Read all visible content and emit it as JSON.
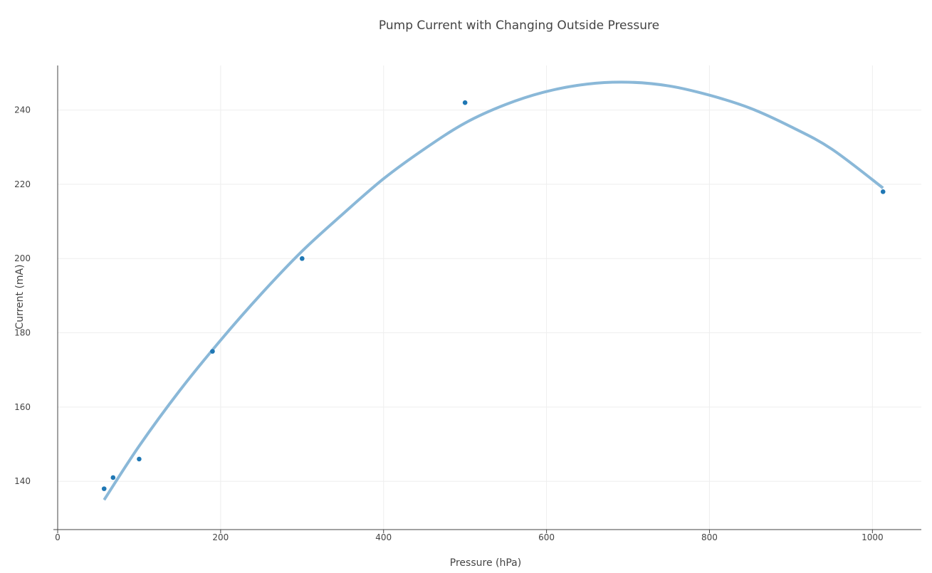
{
  "chart_data": {
    "type": "scatter",
    "title": "Pump Current with Changing Outside Pressure",
    "xlabel": "Pressure (hPa)",
    "ylabel": "Current (mA)",
    "xlim": [
      0,
      1060
    ],
    "ylim": [
      127,
      252
    ],
    "x_ticks": [
      0,
      200,
      400,
      600,
      800,
      1000
    ],
    "y_ticks": [
      140,
      160,
      180,
      200,
      220,
      240
    ],
    "grid": true,
    "legend": "none",
    "colors": {
      "points": "#1f77b4",
      "fit": "#8ab8d8",
      "grid": "#eeeeee",
      "axis": "#444444"
    },
    "series": [
      {
        "type": "scatter",
        "x": [
          57,
          68,
          100,
          190,
          300,
          500,
          1013
        ],
        "y": [
          138,
          141,
          146,
          175,
          200,
          242,
          218
        ]
      },
      {
        "type": "line",
        "x": [
          57,
          100,
          150,
          200,
          250,
          300,
          350,
          400,
          450,
          500,
          550,
          600,
          650,
          700,
          750,
          800,
          850,
          900,
          950,
          1013
        ],
        "y": [
          135,
          149.5,
          164.5,
          178,
          190.5,
          202,
          212,
          221.5,
          229.5,
          236.5,
          241.5,
          245,
          247,
          247.5,
          246.5,
          244,
          240.5,
          235.5,
          229.5,
          219
        ]
      }
    ]
  }
}
